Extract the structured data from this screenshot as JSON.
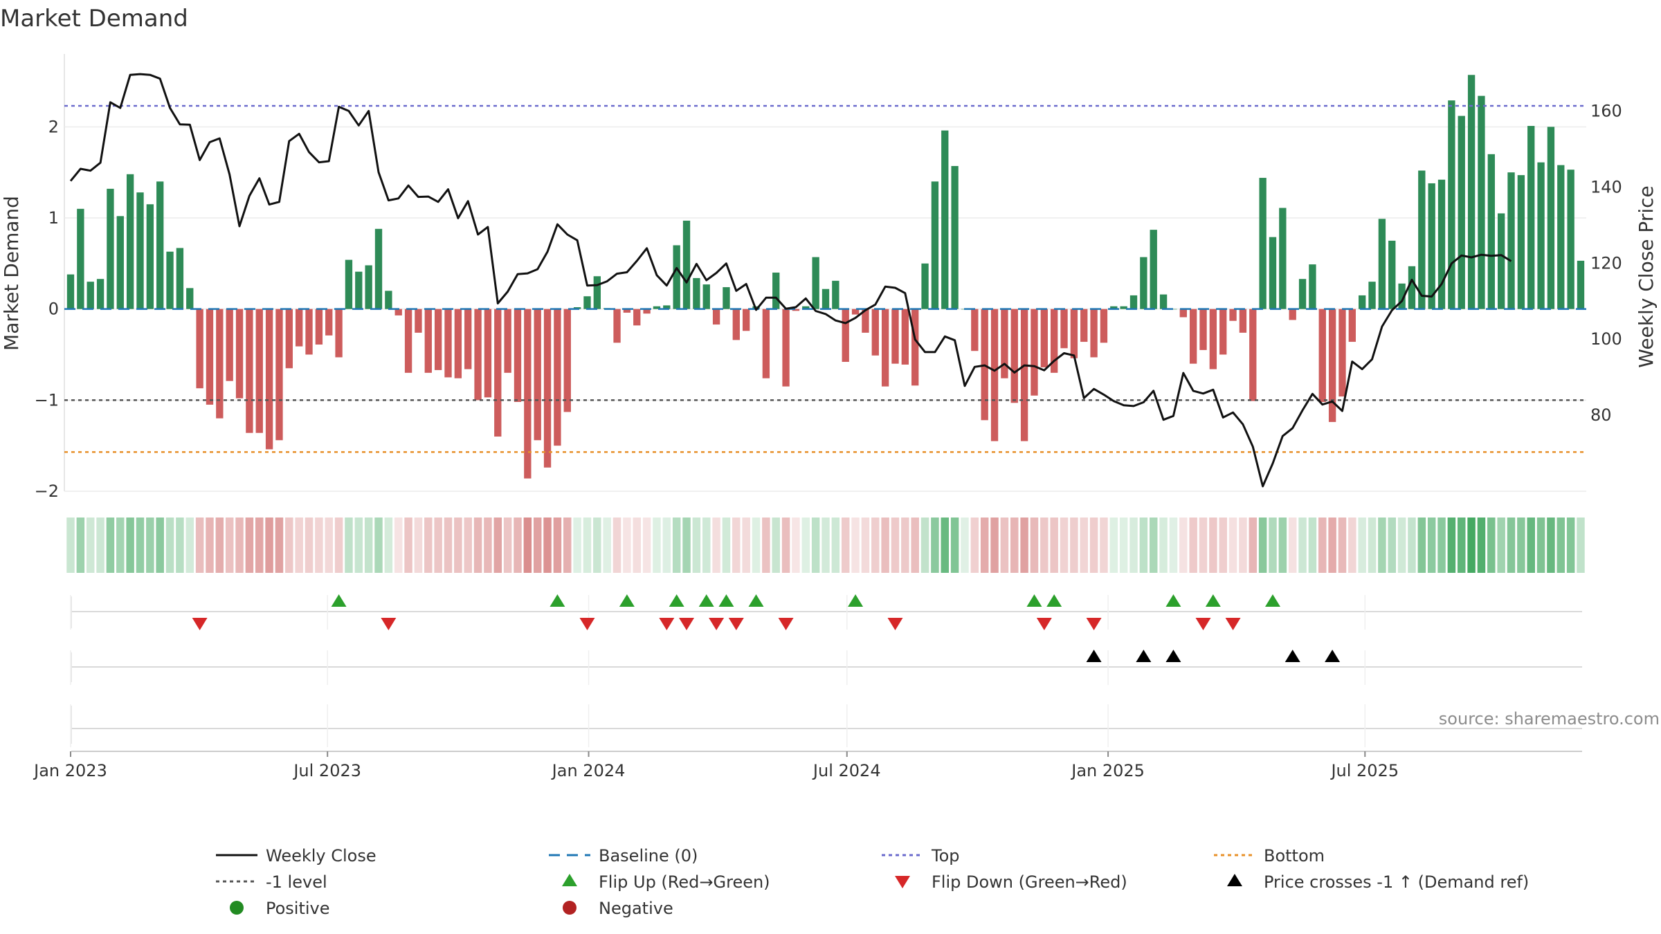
{
  "title": "Market Demand",
  "source": "source: sharemaestro.com",
  "chart_data": {
    "type": "bar",
    "x_start": "2023-01-01",
    "x_step_days": 7,
    "demand": [
      0.38,
      1.1,
      0.3,
      0.33,
      1.32,
      1.02,
      1.48,
      1.28,
      1.15,
      1.4,
      0.63,
      0.67,
      0.23,
      -0.87,
      -1.05,
      -1.2,
      -0.79,
      -0.98,
      -1.36,
      -1.36,
      -1.54,
      -1.44,
      -0.65,
      -0.41,
      -0.5,
      -0.39,
      -0.29,
      -0.53,
      0.54,
      0.41,
      0.48,
      0.88,
      0.2,
      -0.07,
      -0.7,
      -0.26,
      -0.7,
      -0.67,
      -0.75,
      -0.76,
      -0.66,
      -1,
      -0.97,
      -1.4,
      -0.7,
      -1.02,
      -1.86,
      -1.44,
      -1.74,
      -1.5,
      -1.13,
      0.02,
      0.14,
      0.36,
      0.01,
      -0.37,
      -0.04,
      -0.18,
      -0.05,
      0.03,
      0.04,
      0.7,
      0.97,
      0.34,
      0.27,
      -0.17,
      0.24,
      -0.34,
      -0.24,
      0.03,
      -0.76,
      0.4,
      -0.85,
      -0.02,
      0.03,
      0.57,
      0.22,
      0.31,
      -0.58,
      -0.06,
      -0.26,
      -0.51,
      -0.85,
      -0.6,
      -0.61,
      -0.84,
      0.5,
      1.4,
      1.96,
      1.57,
      0,
      -0.46,
      -1.22,
      -1.45,
      -0.76,
      -1.03,
      -1.45,
      -0.95,
      -0.64,
      -0.7,
      -0.43,
      -0.54,
      -0.36,
      -0.53,
      -0.37,
      0.03,
      0.03,
      0.15,
      0.57,
      0.87,
      0.16,
      0,
      -0.09,
      -0.6,
      -0.45,
      -0.66,
      -0.5,
      -0.13,
      -0.26,
      -1.01,
      1.44,
      0.79,
      1.11,
      -0.12,
      0.33,
      0.49,
      -1.02,
      -1.24,
      -0.96,
      -0.36,
      0.15,
      0.3,
      0.99,
      0.75,
      0.28,
      0.47,
      1.52,
      1.38,
      1.42,
      2.29,
      2.12,
      2.57,
      2.34,
      1.7,
      1.05,
      1.5,
      1.47,
      2.01,
      1.61,
      2,
      1.58,
      1.53,
      0.53
    ],
    "weekly_close": [
      141.6,
      144.8,
      144.3,
      146.4,
      162.3,
      160.8,
      169.5,
      169.7,
      169.5,
      168.5,
      160.8,
      156.5,
      156.4,
      147.1,
      151.8,
      152.8,
      143.3,
      129.7,
      137.7,
      142.3,
      135.4,
      136.1,
      152.1,
      154,
      149.2,
      146.5,
      146.8,
      161.1,
      160,
      156.2,
      160,
      143.9,
      136.5,
      137,
      140.4,
      137.4,
      137.5,
      136.1,
      139.4,
      131.8,
      136.3,
      127.5,
      129.5,
      109.4,
      112.5,
      117.1,
      117.3,
      118.4,
      123,
      130.2,
      127.5,
      126,
      114.1,
      114.2,
      115.2,
      117.2,
      117.6,
      120.6,
      123.9,
      116.8,
      114.1,
      118.7,
      114.9,
      119.8,
      115.5,
      117.4,
      119.9,
      112.7,
      114.5,
      107.7,
      110.9,
      110.9,
      108,
      108.4,
      110.7,
      107.4,
      106.6,
      104.9,
      104.2,
      105.6,
      107.6,
      109.1,
      113.8,
      113.5,
      112.1,
      99.9,
      96.6,
      96.6,
      100.7,
      99.7,
      87.7,
      92.7,
      93.1,
      91.7,
      93.5,
      91.2,
      93.1,
      92.9,
      91.8,
      94.3,
      96.3,
      95.7,
      84.5,
      86.9,
      85.4,
      83.7,
      82.6,
      82.4,
      83.4,
      86.4,
      78.8,
      79.8,
      91.1,
      86.4,
      85.7,
      86.7,
      79.4,
      80.7,
      77.6,
      71.7,
      61.3,
      67.3,
      74.5,
      76.6,
      81.3,
      85.6,
      82.8,
      83.6,
      81.1,
      94.1,
      92.1,
      94.7,
      103.3,
      107.6,
      110,
      115.6,
      111.4,
      111.2,
      114.5,
      119.9,
      122,
      121.5,
      122.2,
      121.9,
      122.1,
      120.5
    ],
    "reference_lines": {
      "top": 2.23,
      "minus_one": -1,
      "bottom": -1.57,
      "baseline": 0
    },
    "y_left": {
      "label": "Market Demand",
      "ticks": [
        "−2",
        "−1",
        "0",
        "1",
        "2"
      ],
      "range": [
        -2.0,
        2.8
      ]
    },
    "y_right": {
      "label": "Weekly Close Price",
      "ticks": [
        "80",
        "100",
        "120",
        "140",
        "160"
      ],
      "range": [
        60,
        175
      ]
    },
    "x_ticks": [
      "Jan 2023",
      "Jul 2023",
      "Jan 2024",
      "Jul 2024",
      "Jan 2025",
      "Jul 2025"
    ],
    "x_tick_dates": [
      "2023-01-01",
      "2023-07-01",
      "2024-01-01",
      "2024-07-01",
      "2025-01-01",
      "2025-07-01"
    ],
    "flip_up": [
      27,
      49,
      56,
      61,
      64,
      66,
      69,
      79,
      97,
      99,
      111,
      115,
      121
    ],
    "flip_down": [
      13,
      32,
      52,
      60,
      62,
      65,
      67,
      72,
      83,
      98,
      103,
      114,
      117
    ],
    "price_cross": [
      103,
      108,
      111,
      123,
      127
    ],
    "colors": {
      "positive": "#2e8b57",
      "negative": "#cd5c5c",
      "line": "#111111",
      "top": "#6a6acd",
      "bottom": "#e8912a",
      "minus_one": "#555555",
      "baseline": "#1f77b4",
      "flip_up": "#2ca02c",
      "flip_down": "#d62728",
      "cross": "#000000",
      "positive_dot": "#228b22",
      "negative_dot": "#b22222"
    }
  },
  "legend": {
    "weekly_close": "Weekly Close",
    "baseline": "Baseline (0)",
    "top": "Top",
    "bottom": "Bottom",
    "minus_one": "-1 level",
    "flip_up": "Flip Up (Red→Green)",
    "flip_down": "Flip Down (Green→Red)",
    "price_cross": "Price crosses -1 ↑ (Demand ref)",
    "positive": "Positive",
    "negative": "Negative"
  }
}
